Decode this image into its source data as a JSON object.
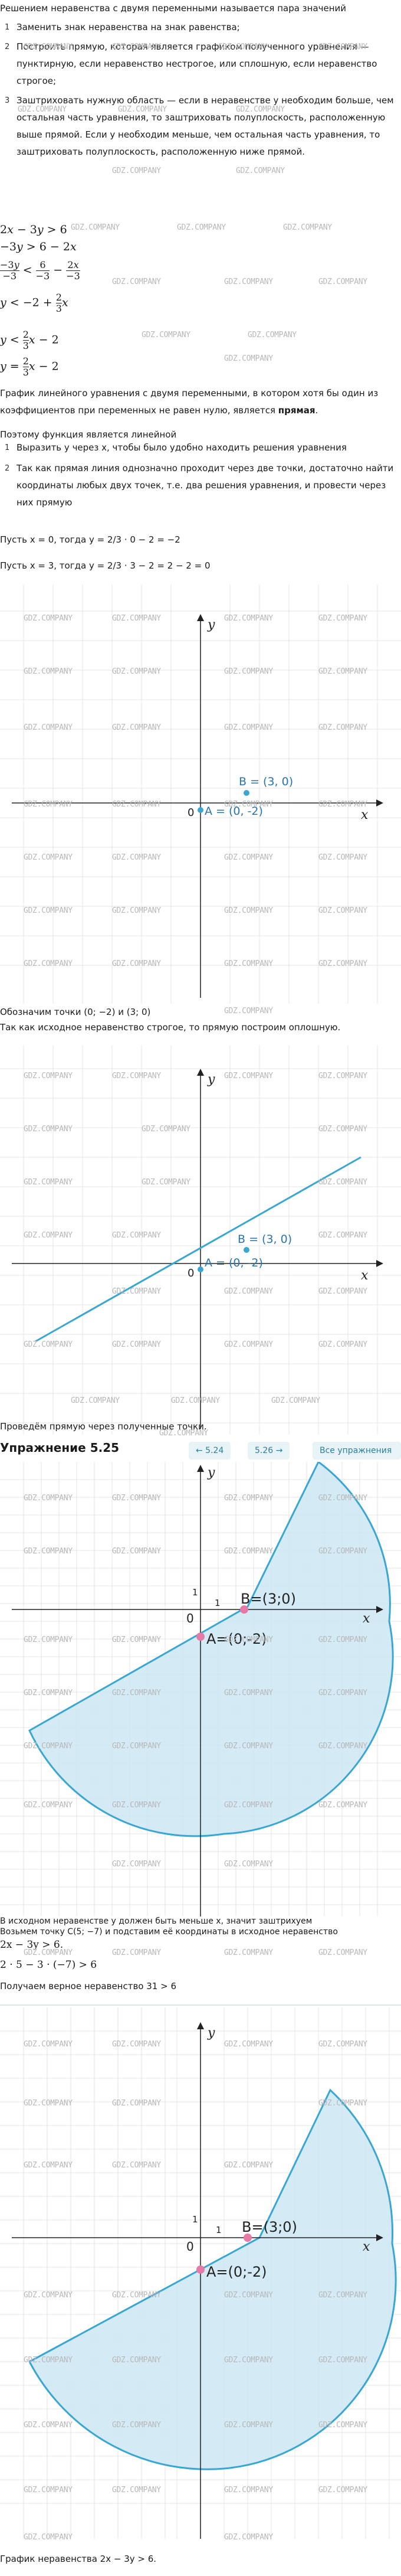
{
  "intro": "Решением неравенства с двумя переменными называется пара значений",
  "steps_1": [
    "Заменить знак неравенства на знак равенства;",
    "Построить прямую, которая является графиком полученного уравнения — пунктирную, если неравенство нестрогое, или сплошную, если неравенство строгое;",
    "Заштриховать нужную область — если в неравенстве y необходим больше, чем остальная часть уравнения, то заштриховать полуплоскость, расположенную выше прямой. Если y необходим меньше, чем остальная часть уравнения, то заштриховать полуплоскость, расположенную ниже прямой."
  ],
  "math_lines": [
    "2x − 3y > 6",
    "−3y > 6 − 2x",
    "y < −2 + 2/3 x",
    "y < 2/3 x − 2",
    "y = 2/3 x − 2"
  ],
  "linear_def": {
    "before": "График линейного уравнения с двумя переменными, в котором хотя бы один из коэффициентов при переменных не равен нулю, является",
    "bold": "прямая",
    "after": "."
  },
  "func_note": "Поэтому функция является линейной",
  "steps_2": [
    "Выразить y через x, чтобы было удобно находить решения уравнения",
    "Так как прямая линия однозначно проходит через две точки, достаточно найти координаты любых двух точек, т.е. два решения уравнения, и провести через них прямую"
  ],
  "calc": [
    "Пусть x = 0, тогда y = 2/3 · 0 − 2 = −2",
    "Пусть x = 3, тогда y = 2/3 · 3 − 2 = 2 − 2 = 0"
  ],
  "graph1": {
    "x_label": "x",
    "y_label": "y",
    "origin": "0",
    "point_a": "A = (0, -2)",
    "point_b": "B = (3, 0)"
  },
  "caption_points": "Обозначим точки (0; −2) и (3; 0)",
  "caption_strict": "Так как исходное неравенство строгое, то прямую построим оплошную.",
  "graph2": {
    "x_label": "x",
    "y_label": "y",
    "origin": "0",
    "point_a": "A = (0, -2)",
    "point_b": "B = (3, 0)"
  },
  "caption_line": "Проведём прямую через полученные точки.",
  "nav": {
    "title": "Упражнение 5.25",
    "prev": "← 5.24",
    "next": "5.26 →",
    "all": "Все упражнения"
  },
  "graph3": {
    "x_label": "x",
    "y_label": "y",
    "origin": "0",
    "one_x": "1",
    "one_y": "1",
    "point_a": "A=(0;-2)",
    "point_b": "B=(3;0)"
  },
  "check_lines": [
    "В исходном неравенстве y должен быть меньше x, значит заштрихуем",
    "Возьмем точку C(5; −7) и подставим её координаты в исходное неравенство",
    "2x − 3y > 6.",
    "2 · 5 − 3 · (−7) > 6",
    "Получаем верное неравенство 31 > 6"
  ],
  "graph4": {
    "x_label": "x",
    "y_label": "y",
    "origin": "0",
    "one_x": "1",
    "one_y": "1",
    "point_a": "A=(0;-2)",
    "point_b": "B=(3;0)"
  },
  "final_caption": "График неравенства 2x − 3y > 6.",
  "watermark": "GDZ.COMPANY",
  "colors": {
    "line": "#3aa6d2",
    "fill": "#cce8f5",
    "point": "#e57aa6",
    "accent": "#2c7ea0"
  }
}
